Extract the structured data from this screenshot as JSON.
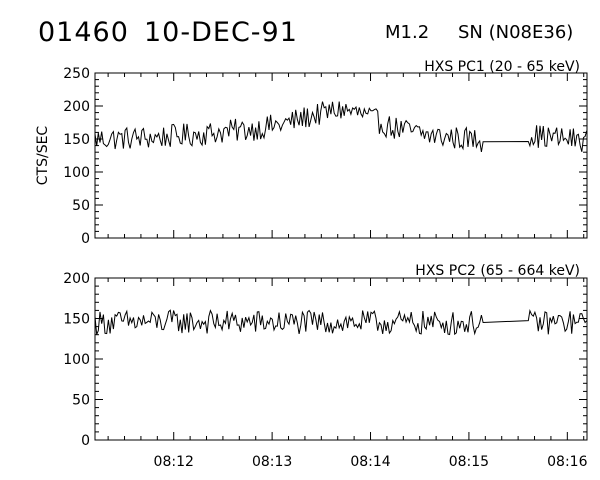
{
  "header": {
    "event_id": "01460",
    "date": "10-DEC-91",
    "flare_class": "M1.2",
    "location": "SN (N08E36)"
  },
  "chart_data": [
    {
      "type": "line",
      "title": "HXS PC1 (20 - 65 keV)",
      "ylabel": "CTS/SEC",
      "ylim": [
        0,
        250
      ],
      "yticks": [
        "250",
        "200",
        "150",
        "100",
        "50",
        "0"
      ],
      "xlim_minutes": [
        11.2,
        16.2
      ],
      "xticks": [],
      "gap": [
        15.15,
        15.6
      ],
      "series": [
        {
          "profile": [
            [
              11.2,
              150
            ],
            [
              11.8,
              152
            ],
            [
              12.3,
              158
            ],
            [
              12.8,
              165
            ],
            [
              13.1,
              172
            ],
            [
              13.4,
              185
            ],
            [
              13.7,
              195
            ],
            [
              13.9,
              188
            ],
            [
              14.2,
              168
            ],
            [
              14.6,
              155
            ],
            [
              15.0,
              150
            ],
            [
              15.15,
              148
            ],
            [
              15.6,
              156
            ],
            [
              16.0,
              150
            ],
            [
              16.2,
              148
            ]
          ],
          "noise": 18,
          "step_min": 0.017
        }
      ]
    },
    {
      "type": "line",
      "title": "HXS PC2 (65 - 664 keV)",
      "ylabel": "",
      "ylim": [
        0,
        200
      ],
      "yticks": [
        "200",
        "150",
        "100",
        "50",
        "0"
      ],
      "xlim_minutes": [
        11.2,
        16.2
      ],
      "xticks": [
        "08:12",
        "08:13",
        "08:14",
        "08:15",
        "08:16"
      ],
      "gap": [
        15.15,
        15.6
      ],
      "series": [
        {
          "profile": [
            [
              11.2,
              145
            ],
            [
              12.0,
              146
            ],
            [
              13.0,
              145
            ],
            [
              14.0,
              145
            ],
            [
              15.0,
              144
            ],
            [
              15.15,
              147
            ],
            [
              15.6,
              145
            ],
            [
              16.2,
              145
            ]
          ],
          "noise": 15,
          "step_min": 0.017
        }
      ]
    }
  ]
}
